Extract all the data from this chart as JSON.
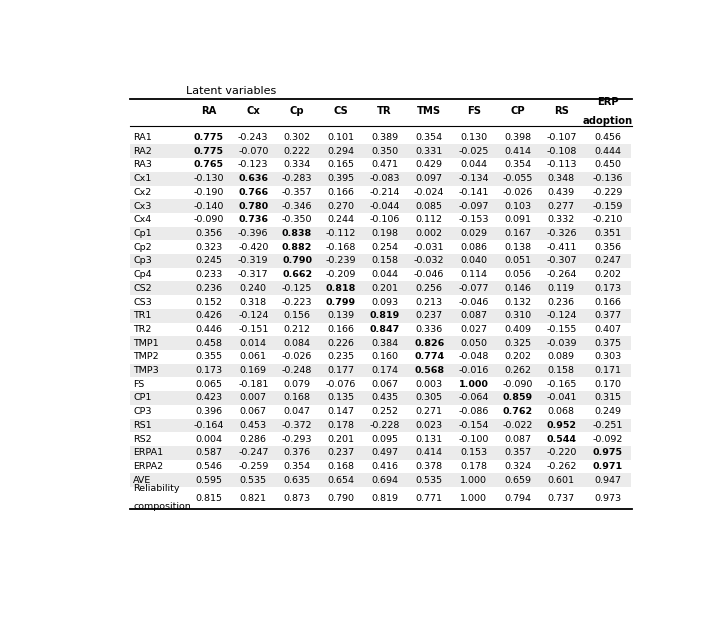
{
  "col_headers": [
    "RA",
    "Cx",
    "Cp",
    "CS",
    "TR",
    "TMS",
    "FS",
    "CP",
    "RS",
    "ERP\nadoption"
  ],
  "rows": [
    [
      "RA1",
      "0.775",
      "-0.243",
      "0.302",
      "0.101",
      "0.389",
      "0.354",
      "0.130",
      "0.398",
      "-0.107",
      "0.456"
    ],
    [
      "RA2",
      "0.775",
      "-0.070",
      "0.222",
      "0.294",
      "0.350",
      "0.331",
      "-0.025",
      "0.414",
      "-0.108",
      "0.444"
    ],
    [
      "RA3",
      "0.765",
      "-0.123",
      "0.334",
      "0.165",
      "0.471",
      "0.429",
      "0.044",
      "0.354",
      "-0.113",
      "0.450"
    ],
    [
      "Cx1",
      "-0.130",
      "0.636",
      "-0.283",
      "0.395",
      "-0.083",
      "0.097",
      "-0.134",
      "-0.055",
      "0.348",
      "-0.136"
    ],
    [
      "Cx2",
      "-0.190",
      "0.766",
      "-0.357",
      "0.166",
      "-0.214",
      "-0.024",
      "-0.141",
      "-0.026",
      "0.439",
      "-0.229"
    ],
    [
      "Cx3",
      "-0.140",
      "0.780",
      "-0.346",
      "0.270",
      "-0.044",
      "0.085",
      "-0.097",
      "0.103",
      "0.277",
      "-0.159"
    ],
    [
      "Cx4",
      "-0.090",
      "0.736",
      "-0.350",
      "0.244",
      "-0.106",
      "0.112",
      "-0.153",
      "0.091",
      "0.332",
      "-0.210"
    ],
    [
      "Cp1",
      "0.356",
      "-0.396",
      "0.838",
      "-0.112",
      "0.198",
      "0.002",
      "0.029",
      "0.167",
      "-0.326",
      "0.351"
    ],
    [
      "Cp2",
      "0.323",
      "-0.420",
      "0.882",
      "-0.168",
      "0.254",
      "-0.031",
      "0.086",
      "0.138",
      "-0.411",
      "0.356"
    ],
    [
      "Cp3",
      "0.245",
      "-0.319",
      "0.790",
      "-0.239",
      "0.158",
      "-0.032",
      "0.040",
      "0.051",
      "-0.307",
      "0.247"
    ],
    [
      "Cp4",
      "0.233",
      "-0.317",
      "0.662",
      "-0.209",
      "0.044",
      "-0.046",
      "0.114",
      "0.056",
      "-0.264",
      "0.202"
    ],
    [
      "CS2",
      "0.236",
      "0.240",
      "-0.125",
      "0.818",
      "0.201",
      "0.256",
      "-0.077",
      "0.146",
      "0.119",
      "0.173"
    ],
    [
      "CS3",
      "0.152",
      "0.318",
      "-0.223",
      "0.799",
      "0.093",
      "0.213",
      "-0.046",
      "0.132",
      "0.236",
      "0.166"
    ],
    [
      "TR1",
      "0.426",
      "-0.124",
      "0.156",
      "0.139",
      "0.819",
      "0.237",
      "0.087",
      "0.310",
      "-0.124",
      "0.377"
    ],
    [
      "TR2",
      "0.446",
      "-0.151",
      "0.212",
      "0.166",
      "0.847",
      "0.336",
      "0.027",
      "0.409",
      "-0.155",
      "0.407"
    ],
    [
      "TMP1",
      "0.458",
      "0.014",
      "0.084",
      "0.226",
      "0.384",
      "0.826",
      "0.050",
      "0.325",
      "-0.039",
      "0.375"
    ],
    [
      "TMP2",
      "0.355",
      "0.061",
      "-0.026",
      "0.235",
      "0.160",
      "0.774",
      "-0.048",
      "0.202",
      "0.089",
      "0.303"
    ],
    [
      "TMP3",
      "0.173",
      "0.169",
      "-0.248",
      "0.177",
      "0.174",
      "0.568",
      "-0.016",
      "0.262",
      "0.158",
      "0.171"
    ],
    [
      "FS",
      "0.065",
      "-0.181",
      "0.079",
      "-0.076",
      "0.067",
      "0.003",
      "1.000",
      "-0.090",
      "-0.165",
      "0.170"
    ],
    [
      "CP1",
      "0.423",
      "0.007",
      "0.168",
      "0.135",
      "0.435",
      "0.305",
      "-0.064",
      "0.859",
      "-0.041",
      "0.315"
    ],
    [
      "CP3",
      "0.396",
      "0.067",
      "0.047",
      "0.147",
      "0.252",
      "0.271",
      "-0.086",
      "0.762",
      "0.068",
      "0.249"
    ],
    [
      "RS1",
      "-0.164",
      "0.453",
      "-0.372",
      "0.178",
      "-0.228",
      "0.023",
      "-0.154",
      "-0.022",
      "0.952",
      "-0.251"
    ],
    [
      "RS2",
      "0.004",
      "0.286",
      "-0.293",
      "0.201",
      "0.095",
      "0.131",
      "-0.100",
      "0.087",
      "0.544",
      "-0.092"
    ],
    [
      "ERPA1",
      "0.587",
      "-0.247",
      "0.376",
      "0.237",
      "0.497",
      "0.414",
      "0.153",
      "0.357",
      "-0.220",
      "0.975"
    ],
    [
      "ERPA2",
      "0.546",
      "-0.259",
      "0.354",
      "0.168",
      "0.416",
      "0.378",
      "0.178",
      "0.324",
      "-0.262",
      "0.971"
    ],
    [
      "AVE",
      "0.595",
      "0.535",
      "0.635",
      "0.654",
      "0.694",
      "0.535",
      "1.000",
      "0.659",
      "0.601",
      "0.947"
    ],
    [
      "Reliability\ncomposition",
      "0.815",
      "0.821",
      "0.873",
      "0.790",
      "0.819",
      "0.771",
      "1.000",
      "0.794",
      "0.737",
      "0.973"
    ]
  ],
  "bold_map": {
    "0": 1,
    "1": 1,
    "2": 1,
    "3": 2,
    "4": 2,
    "5": 2,
    "6": 2,
    "7": 3,
    "8": 3,
    "9": 3,
    "10": 3,
    "11": 4,
    "12": 4,
    "13": 5,
    "14": 5,
    "15": 6,
    "16": 6,
    "17": 6,
    "18": 7,
    "19": 8,
    "20": 8,
    "21": 9,
    "22": 9,
    "23": 10,
    "24": 10
  },
  "title": "Latent variables",
  "fig_width": 7.01,
  "fig_height": 6.2,
  "dpi": 100
}
